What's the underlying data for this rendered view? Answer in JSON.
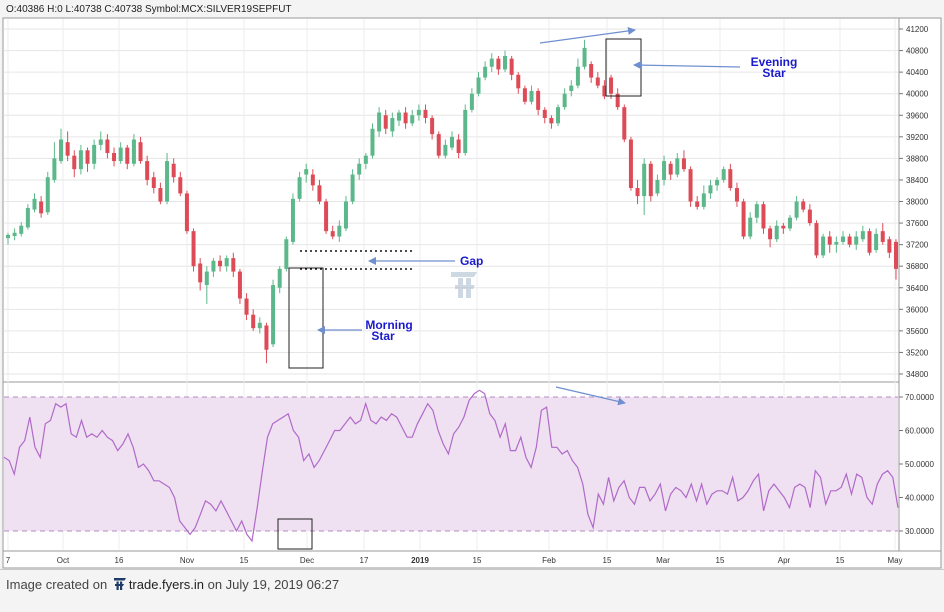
{
  "header": {
    "ohlc_text": "O:40386 H:0 L:40738 C:40738 Symbol:MCX:SILVER19SEPFUT"
  },
  "footer": {
    "prefix": "Image created on",
    "site": "trade.fyers.in",
    "suffix": "on July 19, 2019 06:27"
  },
  "annotations": {
    "gap": "Gap",
    "morning_star": [
      "Morning",
      "Star"
    ],
    "evening_star": [
      "Evening",
      "Star"
    ]
  },
  "colors": {
    "up": "#5cb88a",
    "down": "#dd4b57",
    "rsi_line": "#b06ac8",
    "rsi_band": "#efe0f2",
    "annotation": "#1a1acc",
    "arrow": "#6f8fcf"
  },
  "chart_data": [
    {
      "type": "candlestick",
      "symbol": "MCX:SILVER19SEPFUT",
      "y_ticks": [
        "41200",
        "40800",
        "40400",
        "40000",
        "39600",
        "39200",
        "38800",
        "38400",
        "38000",
        "37600",
        "37200",
        "36800",
        "36400",
        "36000",
        "35600",
        "35200",
        "34800"
      ],
      "x_ticks": [
        "7",
        "Oct",
        "16",
        "Nov",
        "15",
        "Dec",
        "17",
        "2019",
        "15",
        "Feb",
        "15",
        "Mar",
        "15",
        "Apr",
        "15",
        "May"
      ],
      "ylim": [
        34800,
        41200
      ],
      "candles": [
        {
          "o": 37320,
          "c": 37380,
          "h": 37420,
          "l": 37200
        },
        {
          "o": 37360,
          "c": 37420,
          "h": 37500,
          "l": 37280
        },
        {
          "o": 37400,
          "c": 37550,
          "h": 37620,
          "l": 37350
        },
        {
          "o": 37520,
          "c": 37880,
          "h": 37950,
          "l": 37480
        },
        {
          "o": 37850,
          "c": 38050,
          "h": 38150,
          "l": 37800
        },
        {
          "o": 38000,
          "c": 37780,
          "h": 38100,
          "l": 37700
        },
        {
          "o": 37800,
          "c": 38450,
          "h": 38550,
          "l": 37750
        },
        {
          "o": 38400,
          "c": 38800,
          "h": 39100,
          "l": 38350
        },
        {
          "o": 38750,
          "c": 39150,
          "h": 39350,
          "l": 38700
        },
        {
          "o": 39100,
          "c": 38850,
          "h": 39300,
          "l": 38750
        },
        {
          "o": 38850,
          "c": 38600,
          "h": 38950,
          "l": 38450
        },
        {
          "o": 38600,
          "c": 38950,
          "h": 39050,
          "l": 38500
        },
        {
          "o": 38950,
          "c": 38700,
          "h": 39000,
          "l": 38550
        },
        {
          "o": 38700,
          "c": 39050,
          "h": 39150,
          "l": 38600
        },
        {
          "o": 39050,
          "c": 39150,
          "h": 39300,
          "l": 38950
        },
        {
          "o": 39150,
          "c": 38900,
          "h": 39250,
          "l": 38800
        },
        {
          "o": 38900,
          "c": 38750,
          "h": 39000,
          "l": 38650
        },
        {
          "o": 38750,
          "c": 39000,
          "h": 39100,
          "l": 38700
        },
        {
          "o": 39000,
          "c": 38700,
          "h": 39050,
          "l": 38600
        },
        {
          "o": 38700,
          "c": 39150,
          "h": 39250,
          "l": 38650
        },
        {
          "o": 39100,
          "c": 38750,
          "h": 39200,
          "l": 38700
        },
        {
          "o": 38750,
          "c": 38400,
          "h": 38850,
          "l": 38300
        },
        {
          "o": 38450,
          "c": 38250,
          "h": 38550,
          "l": 38150
        },
        {
          "o": 38250,
          "c": 38000,
          "h": 38350,
          "l": 37950
        },
        {
          "o": 38000,
          "c": 38750,
          "h": 38900,
          "l": 37950
        },
        {
          "o": 38700,
          "c": 38450,
          "h": 38800,
          "l": 38350
        },
        {
          "o": 38450,
          "c": 38150,
          "h": 38550,
          "l": 38100
        },
        {
          "o": 38150,
          "c": 37450,
          "h": 38200,
          "l": 37400
        },
        {
          "o": 37450,
          "c": 36800,
          "h": 37500,
          "l": 36700
        },
        {
          "o": 36850,
          "c": 36500,
          "h": 36950,
          "l": 36350
        },
        {
          "o": 36450,
          "c": 36700,
          "h": 36800,
          "l": 36100
        },
        {
          "o": 36700,
          "c": 36900,
          "h": 36950,
          "l": 36600
        },
        {
          "o": 36900,
          "c": 36800,
          "h": 37000,
          "l": 36700
        },
        {
          "o": 36800,
          "c": 36950,
          "h": 37000,
          "l": 36700
        },
        {
          "o": 36950,
          "c": 36700,
          "h": 37050,
          "l": 36600
        },
        {
          "o": 36700,
          "c": 36200,
          "h": 36750,
          "l": 36100
        },
        {
          "o": 36200,
          "c": 35900,
          "h": 36300,
          "l": 35800
        },
        {
          "o": 35900,
          "c": 35650,
          "h": 36000,
          "l": 35600
        },
        {
          "o": 35650,
          "c": 35750,
          "h": 35850,
          "l": 35550
        },
        {
          "o": 35700,
          "c": 35250,
          "h": 35750,
          "l": 35000
        },
        {
          "o": 35350,
          "c": 36450,
          "h": 36550,
          "l": 35300
        },
        {
          "o": 36400,
          "c": 36750,
          "h": 36800,
          "l": 36300
        },
        {
          "o": 36750,
          "c": 37300,
          "h": 37350,
          "l": 36700
        },
        {
          "o": 37250,
          "c": 38050,
          "h": 38150,
          "l": 37200
        },
        {
          "o": 38050,
          "c": 38450,
          "h": 38550,
          "l": 38000
        },
        {
          "o": 38500,
          "c": 38600,
          "h": 38700,
          "l": 38350
        },
        {
          "o": 38500,
          "c": 38300,
          "h": 38600,
          "l": 38200
        },
        {
          "o": 38300,
          "c": 38000,
          "h": 38400,
          "l": 37950
        },
        {
          "o": 38000,
          "c": 37450,
          "h": 38050,
          "l": 37400
        },
        {
          "o": 37450,
          "c": 37350,
          "h": 37550,
          "l": 37300
        },
        {
          "o": 37350,
          "c": 37550,
          "h": 37650,
          "l": 37250
        },
        {
          "o": 37500,
          "c": 38000,
          "h": 38100,
          "l": 37450
        },
        {
          "o": 38000,
          "c": 38500,
          "h": 38600,
          "l": 37950
        },
        {
          "o": 38500,
          "c": 38700,
          "h": 38800,
          "l": 38400
        },
        {
          "o": 38700,
          "c": 38850,
          "h": 38900,
          "l": 38600
        },
        {
          "o": 38850,
          "c": 39350,
          "h": 39450,
          "l": 38800
        },
        {
          "o": 39300,
          "c": 39650,
          "h": 39750,
          "l": 39200
        },
        {
          "o": 39600,
          "c": 39350,
          "h": 39700,
          "l": 39250
        },
        {
          "o": 39300,
          "c": 39550,
          "h": 39650,
          "l": 39200
        },
        {
          "o": 39500,
          "c": 39650,
          "h": 39700,
          "l": 39400
        },
        {
          "o": 39650,
          "c": 39450,
          "h": 39750,
          "l": 39350
        },
        {
          "o": 39450,
          "c": 39600,
          "h": 39700,
          "l": 39400
        },
        {
          "o": 39600,
          "c": 39700,
          "h": 39800,
          "l": 39500
        },
        {
          "o": 39700,
          "c": 39550,
          "h": 39800,
          "l": 39450
        },
        {
          "o": 39550,
          "c": 39250,
          "h": 39600,
          "l": 39150
        },
        {
          "o": 39250,
          "c": 38850,
          "h": 39300,
          "l": 38800
        },
        {
          "o": 38850,
          "c": 39050,
          "h": 39150,
          "l": 38800
        },
        {
          "o": 39000,
          "c": 39200,
          "h": 39300,
          "l": 38950
        },
        {
          "o": 39150,
          "c": 38900,
          "h": 39250,
          "l": 38800
        },
        {
          "o": 38900,
          "c": 39700,
          "h": 39800,
          "l": 38850
        },
        {
          "o": 39700,
          "c": 40000,
          "h": 40100,
          "l": 39650
        },
        {
          "o": 40000,
          "c": 40300,
          "h": 40400,
          "l": 39950
        },
        {
          "o": 40300,
          "c": 40500,
          "h": 40600,
          "l": 40250
        },
        {
          "o": 40500,
          "c": 40650,
          "h": 40750,
          "l": 40400
        },
        {
          "o": 40650,
          "c": 40450,
          "h": 40700,
          "l": 40350
        },
        {
          "o": 40450,
          "c": 40700,
          "h": 40800,
          "l": 40400
        },
        {
          "o": 40650,
          "c": 40350,
          "h": 40700,
          "l": 40250
        },
        {
          "o": 40350,
          "c": 40100,
          "h": 40400,
          "l": 40000
        },
        {
          "o": 40100,
          "c": 39850,
          "h": 40150,
          "l": 39800
        },
        {
          "o": 39850,
          "c": 40050,
          "h": 40150,
          "l": 39800
        },
        {
          "o": 40050,
          "c": 39700,
          "h": 40100,
          "l": 39600
        },
        {
          "o": 39700,
          "c": 39550,
          "h": 39750,
          "l": 39450
        },
        {
          "o": 39550,
          "c": 39450,
          "h": 39600,
          "l": 39350
        },
        {
          "o": 39450,
          "c": 39750,
          "h": 39800,
          "l": 39400
        },
        {
          "o": 39750,
          "c": 40000,
          "h": 40100,
          "l": 39700
        },
        {
          "o": 40050,
          "c": 40150,
          "h": 40250,
          "l": 39950
        },
        {
          "o": 40150,
          "c": 40500,
          "h": 40650,
          "l": 40100
        },
        {
          "o": 40500,
          "c": 40850,
          "h": 41000,
          "l": 40450
        },
        {
          "o": 40550,
          "c": 40300,
          "h": 40600,
          "l": 40200
        },
        {
          "o": 40300,
          "c": 40150,
          "h": 40400,
          "l": 40100
        },
        {
          "o": 40150,
          "c": 39950,
          "h": 40250,
          "l": 39900
        },
        {
          "o": 40300,
          "c": 40000,
          "h": 40350,
          "l": 39900
        },
        {
          "o": 40000,
          "c": 39750,
          "h": 40100,
          "l": 39700
        },
        {
          "o": 39750,
          "c": 39150,
          "h": 39800,
          "l": 39100
        },
        {
          "o": 39150,
          "c": 38250,
          "h": 39200,
          "l": 38200
        },
        {
          "o": 38250,
          "c": 38100,
          "h": 38400,
          "l": 37950
        },
        {
          "o": 38100,
          "c": 38700,
          "h": 38800,
          "l": 37750
        },
        {
          "o": 38700,
          "c": 38100,
          "h": 38750,
          "l": 38000
        },
        {
          "o": 38150,
          "c": 38400,
          "h": 38500,
          "l": 38100
        },
        {
          "o": 38400,
          "c": 38750,
          "h": 38850,
          "l": 38300
        },
        {
          "o": 38700,
          "c": 38500,
          "h": 38750,
          "l": 38400
        },
        {
          "o": 38500,
          "c": 38800,
          "h": 38900,
          "l": 38450
        },
        {
          "o": 38800,
          "c": 38600,
          "h": 38950,
          "l": 38550
        },
        {
          "o": 38600,
          "c": 38000,
          "h": 38650,
          "l": 37900
        },
        {
          "o": 38000,
          "c": 37900,
          "h": 38100,
          "l": 37850
        },
        {
          "o": 37900,
          "c": 38150,
          "h": 38300,
          "l": 37850
        },
        {
          "o": 38150,
          "c": 38300,
          "h": 38400,
          "l": 38050
        },
        {
          "o": 38300,
          "c": 38400,
          "h": 38450,
          "l": 38200
        },
        {
          "o": 38400,
          "c": 38600,
          "h": 38650,
          "l": 38350
        },
        {
          "o": 38600,
          "c": 38250,
          "h": 38700,
          "l": 38200
        },
        {
          "o": 38250,
          "c": 38000,
          "h": 38350,
          "l": 37900
        },
        {
          "o": 38000,
          "c": 37350,
          "h": 38050,
          "l": 37300
        },
        {
          "o": 37350,
          "c": 37700,
          "h": 37800,
          "l": 37300
        },
        {
          "o": 37700,
          "c": 37950,
          "h": 38000,
          "l": 37600
        },
        {
          "o": 37950,
          "c": 37500,
          "h": 38000,
          "l": 37400
        },
        {
          "o": 37500,
          "c": 37300,
          "h": 37550,
          "l": 37150
        },
        {
          "o": 37300,
          "c": 37550,
          "h": 37650,
          "l": 37250
        },
        {
          "o": 37550,
          "c": 37500,
          "h": 37600,
          "l": 37400
        },
        {
          "o": 37500,
          "c": 37700,
          "h": 37750,
          "l": 37450
        },
        {
          "o": 37700,
          "c": 38000,
          "h": 38100,
          "l": 37650
        },
        {
          "o": 38000,
          "c": 37850,
          "h": 38050,
          "l": 37800
        },
        {
          "o": 37850,
          "c": 37600,
          "h": 37950,
          "l": 37550
        },
        {
          "o": 37600,
          "c": 37000,
          "h": 37650,
          "l": 36950
        },
        {
          "o": 37000,
          "c": 37350,
          "h": 37400,
          "l": 36950
        },
        {
          "o": 37350,
          "c": 37200,
          "h": 37450,
          "l": 37050
        },
        {
          "o": 37200,
          "c": 37250,
          "h": 37350,
          "l": 37050
        },
        {
          "o": 37250,
          "c": 37350,
          "h": 37450,
          "l": 37200
        },
        {
          "o": 37350,
          "c": 37200,
          "h": 37400,
          "l": 37150
        },
        {
          "o": 37200,
          "c": 37350,
          "h": 37450,
          "l": 37100
        },
        {
          "o": 37300,
          "c": 37450,
          "h": 37550,
          "l": 37250
        },
        {
          "o": 37450,
          "c": 37050,
          "h": 37500,
          "l": 37000
        },
        {
          "o": 37100,
          "c": 37400,
          "h": 37500,
          "l": 37050
        },
        {
          "o": 37450,
          "c": 37250,
          "h": 37600,
          "l": 37200
        },
        {
          "o": 37300,
          "c": 37050,
          "h": 37350,
          "l": 36950
        },
        {
          "o": 37250,
          "c": 36750,
          "h": 37300,
          "l": 36550
        }
      ]
    },
    {
      "type": "line",
      "name": "RSI",
      "y_ticks": [
        "70.0000",
        "60.0000",
        "50.0000",
        "40.0000",
        "30.0000"
      ],
      "ylim": [
        27,
        74
      ],
      "bands": [
        30,
        70
      ],
      "values": [
        52,
        51,
        47,
        55,
        57,
        64,
        55,
        52,
        62,
        63,
        68,
        67,
        68,
        59,
        58,
        63,
        58,
        59,
        58,
        60,
        58,
        57,
        54,
        56,
        59,
        55,
        49,
        50,
        48,
        45,
        45,
        44,
        43,
        40,
        33,
        31,
        29,
        31,
        35,
        39,
        38,
        36,
        39,
        36,
        33,
        30,
        33,
        29,
        27,
        37,
        48,
        58,
        62,
        63,
        64,
        65,
        60,
        58,
        51,
        53,
        49,
        51,
        54,
        57,
        60,
        60,
        62,
        64,
        62,
        63,
        68,
        63,
        62,
        64,
        63,
        65,
        64,
        61,
        58,
        58,
        62,
        65,
        68,
        66,
        60,
        56,
        53,
        59,
        61,
        64,
        69,
        71,
        72,
        71,
        65,
        63,
        58,
        62,
        54,
        54,
        58,
        52,
        49,
        55,
        66,
        67,
        55,
        55,
        53,
        54,
        51,
        49,
        44,
        35,
        31,
        41,
        38,
        46,
        39,
        43,
        45,
        40,
        38,
        43,
        43,
        39,
        41,
        44,
        36,
        41,
        43,
        42,
        40,
        44,
        39,
        44,
        38,
        41,
        42,
        42,
        41,
        46,
        39,
        40,
        42,
        45,
        47,
        36,
        42,
        44,
        42,
        40,
        37,
        43,
        44,
        43,
        37,
        48,
        46,
        38,
        42,
        42,
        43,
        47,
        41,
        47,
        46,
        40,
        38,
        44,
        47,
        48,
        46,
        37
      ]
    }
  ]
}
